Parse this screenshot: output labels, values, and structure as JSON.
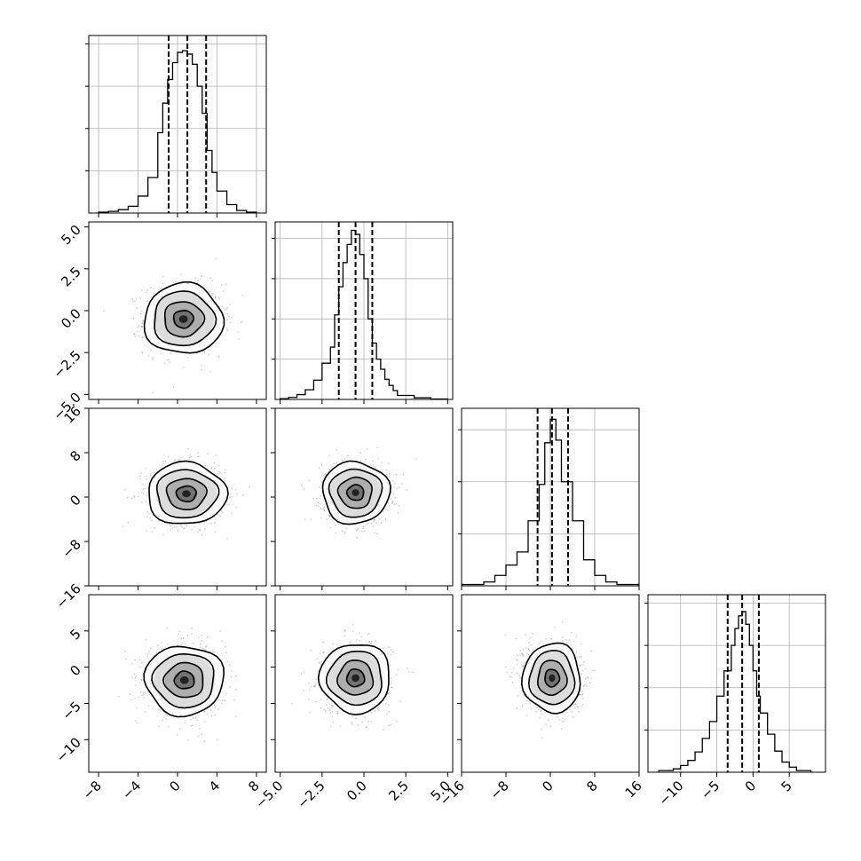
{
  "chart_data": {
    "type": "corner",
    "grid": true,
    "variables": [
      {
        "name": "",
        "range": [
          -9,
          9
        ],
        "ticks": [
          -8,
          -4,
          0,
          4,
          8
        ],
        "tick_labels": [
          "−8",
          "−4",
          "0",
          "4",
          "8"
        ],
        "quantiles": [
          -0.9,
          1.0,
          2.9
        ],
        "hist_max": 0.2,
        "hist_ticks": [
          0.05,
          0.1,
          0.15,
          0.2
        ],
        "hist": {
          "edges": [
            -8,
            -7,
            -6,
            -5,
            -4,
            -3,
            -2,
            -1.5,
            -1,
            -0.5,
            0,
            0.5,
            1,
            1.5,
            2,
            2.5,
            3,
            3.5,
            4,
            5,
            6,
            7,
            8
          ],
          "counts": [
            0.001,
            0.002,
            0.004,
            0.008,
            0.02,
            0.042,
            0.095,
            0.13,
            0.158,
            0.178,
            0.19,
            0.192,
            0.188,
            0.176,
            0.15,
            0.118,
            0.074,
            0.048,
            0.026,
            0.01,
            0.003,
            0.001
          ]
        }
      },
      {
        "name": "",
        "range": [
          -5.3,
          5.3
        ],
        "ticks": [
          -5,
          -2.5,
          0,
          2.5,
          5
        ],
        "tick_labels": [
          "−5.0",
          "−2.5",
          "0.0",
          "2.5",
          "5.0"
        ],
        "quantiles": [
          -1.5,
          -0.5,
          0.5
        ],
        "hist_max": 0.42,
        "hist_ticks": [
          0.1,
          0.2,
          0.3,
          0.4
        ],
        "hist": {
          "edges": [
            -5,
            -4.5,
            -4,
            -3.5,
            -3,
            -2.5,
            -2,
            -1.75,
            -1.5,
            -1.25,
            -1,
            -0.75,
            -0.5,
            -0.25,
            0,
            0.25,
            0.5,
            0.75,
            1,
            1.25,
            1.5,
            1.75,
            2,
            3,
            4,
            5
          ],
          "counts": [
            0.002,
            0.005,
            0.012,
            0.024,
            0.048,
            0.09,
            0.13,
            0.21,
            0.28,
            0.34,
            0.385,
            0.42,
            0.41,
            0.36,
            0.3,
            0.2,
            0.14,
            0.1,
            0.075,
            0.05,
            0.035,
            0.022,
            0.01,
            0.004,
            0.001
          ]
        }
      },
      {
        "name": "",
        "range": [
          -16,
          16
        ],
        "ticks": [
          -16,
          -8,
          0,
          8,
          16
        ],
        "tick_labels": [
          "−16",
          "−8",
          "0",
          "8",
          "16"
        ],
        "quantiles": [
          -2.3,
          0.3,
          3.2
        ],
        "hist_max": 0.13,
        "hist_ticks": [
          0.04,
          0.08,
          0.12
        ],
        "hist": {
          "edges": [
            -16,
            -12,
            -10,
            -8,
            -6,
            -4,
            -2,
            -1,
            0,
            1,
            2,
            4,
            6,
            8,
            10,
            12,
            16
          ],
          "counts": [
            0.001,
            0.003,
            0.008,
            0.016,
            0.026,
            0.05,
            0.078,
            0.11,
            0.128,
            0.112,
            0.08,
            0.05,
            0.02,
            0.008,
            0.003,
            0.001
          ]
        }
      },
      {
        "name": "",
        "range": [
          -14.5,
          10
        ],
        "ticks": [
          -10,
          -5,
          0,
          5
        ],
        "tick_labels": [
          "−10",
          "−5",
          "0",
          "5"
        ],
        "quantiles": [
          -3.5,
          -1.5,
          0.8
        ],
        "hist_max": 0.2,
        "hist_ticks": [
          0.05,
          0.1,
          0.15,
          0.2
        ],
        "hist": {
          "edges": [
            -13,
            -11,
            -10,
            -9,
            -8,
            -7,
            -6,
            -5,
            -4,
            -3,
            -2.5,
            -2,
            -1.5,
            -1,
            -0.5,
            0,
            0.5,
            1,
            2,
            3,
            4,
            5,
            6,
            8
          ],
          "counts": [
            0.002,
            0.004,
            0.008,
            0.014,
            0.024,
            0.04,
            0.06,
            0.09,
            0.12,
            0.15,
            0.17,
            0.185,
            0.19,
            0.175,
            0.15,
            0.12,
            0.09,
            0.07,
            0.045,
            0.025,
            0.012,
            0.006,
            0.002
          ]
        }
      }
    ],
    "pairs": [
      {
        "x": 0,
        "y": 1,
        "center": [
          0.6,
          -0.5
        ],
        "sigma": [
          2.0,
          1.05
        ],
        "rho": 0.0
      },
      {
        "x": 0,
        "y": 2,
        "center": [
          0.9,
          0.6
        ],
        "sigma": [
          2.0,
          2.8
        ],
        "rho": 0.0
      },
      {
        "x": 1,
        "y": 2,
        "center": [
          -0.5,
          0.8
        ],
        "sigma": [
          1.0,
          2.8
        ],
        "rho": 0.0
      },
      {
        "x": 0,
        "y": 3,
        "center": [
          0.7,
          -1.8
        ],
        "sigma": [
          2.0,
          2.4
        ],
        "rho": 0.0
      },
      {
        "x": 1,
        "y": 3,
        "center": [
          -0.5,
          -1.5
        ],
        "sigma": [
          1.05,
          2.4
        ],
        "rho": 0.0
      },
      {
        "x": 2,
        "y": 3,
        "center": [
          0.3,
          -1.5
        ],
        "sigma": [
          2.6,
          2.4
        ],
        "rho": -0.1
      }
    ]
  }
}
